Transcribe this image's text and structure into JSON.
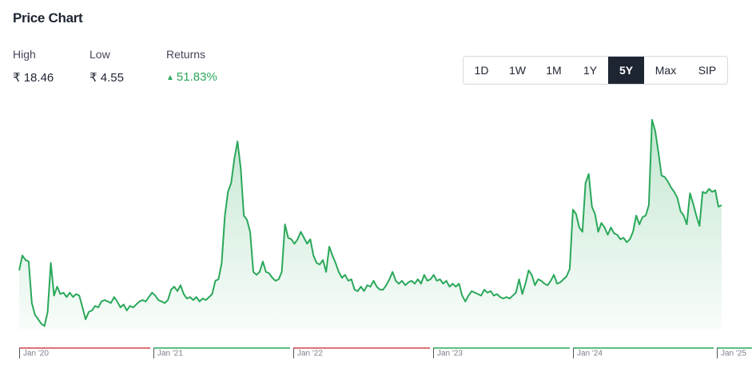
{
  "header": {
    "title": "Price Chart"
  },
  "stats": [
    {
      "label": "High",
      "value": "₹ 18.46"
    },
    {
      "label": "Low",
      "value": "₹ 4.55"
    },
    {
      "label": "Returns",
      "value": "51.83%"
    }
  ],
  "range_buttons": {
    "options": [
      "1D",
      "1W",
      "1M",
      "1Y",
      "5Y",
      "Max",
      "SIP"
    ],
    "selected": "5Y"
  },
  "chart_data": {
    "type": "line",
    "color": "#2aa85a",
    "ylim": [
      4.3,
      19.0
    ],
    "values": [
      8.3,
      9.3,
      9.0,
      8.9,
      6.1,
      5.3,
      5.0,
      4.7,
      4.55,
      5.5,
      8.8,
      6.6,
      7.2,
      6.7,
      6.8,
      6.5,
      6.8,
      6.5,
      6.7,
      6.6,
      5.8,
      5.0,
      5.5,
      5.6,
      5.9,
      5.8,
      6.2,
      6.3,
      6.2,
      6.1,
      6.5,
      6.2,
      5.8,
      6.0,
      5.6,
      5.9,
      5.8,
      6.0,
      6.2,
      6.3,
      6.2,
      6.5,
      6.8,
      6.6,
      6.3,
      6.2,
      6.1,
      6.3,
      7.0,
      7.2,
      6.9,
      7.3,
      6.7,
      6.4,
      6.5,
      6.3,
      6.5,
      6.2,
      6.4,
      6.3,
      6.5,
      6.7,
      7.6,
      7.7,
      8.8,
      12.0,
      13.6,
      14.2,
      15.8,
      17.0,
      15.2,
      12.0,
      11.7,
      10.9,
      8.2,
      8.0,
      8.2,
      8.9,
      8.2,
      8.1,
      7.8,
      7.6,
      7.7,
      8.2,
      11.4,
      10.5,
      10.4,
      10.1,
      10.4,
      10.9,
      10.5,
      10.1,
      10.4,
      9.3,
      8.8,
      8.7,
      9.0,
      8.2,
      9.9,
      9.3,
      8.8,
      8.2,
      7.8,
      8.0,
      7.6,
      7.7,
      7.0,
      6.9,
      7.2,
      6.9,
      7.3,
      7.2,
      7.6,
      7.2,
      7.0,
      7.0,
      7.3,
      7.7,
      8.2,
      7.6,
      7.4,
      7.6,
      7.3,
      7.5,
      7.6,
      7.4,
      7.7,
      7.4,
      8.0,
      7.6,
      7.7,
      8.0,
      7.6,
      7.7,
      7.4,
      7.6,
      7.2,
      7.4,
      7.2,
      7.4,
      6.6,
      6.2,
      6.6,
      6.9,
      6.8,
      6.7,
      6.6,
      7.0,
      6.8,
      6.9,
      6.6,
      6.7,
      6.5,
      6.4,
      6.5,
      6.4,
      6.6,
      6.8,
      7.7,
      6.7,
      7.4,
      8.3,
      8.0,
      7.3,
      7.7,
      7.6,
      7.4,
      7.3,
      7.6,
      8.0,
      7.4,
      7.5,
      7.7,
      7.9,
      8.4,
      12.4,
      12.1,
      11.2,
      10.9,
      14.2,
      14.8,
      12.6,
      12.1,
      10.9,
      11.5,
      11.2,
      10.7,
      11.2,
      10.8,
      10.7,
      10.4,
      10.5,
      10.2,
      10.4,
      10.9,
      12.0,
      11.4,
      11.9,
      12.0,
      12.7,
      18.46,
      17.7,
      16.3,
      14.7,
      14.6,
      14.3,
      13.9,
      13.6,
      13.2,
      12.3,
      12.0,
      11.4,
      13.5,
      12.8,
      12.0,
      11.3,
      13.6,
      13.5,
      13.8,
      13.6,
      13.7,
      12.6,
      12.7
    ],
    "x_labels": [
      "Jan '20",
      "Jan '21",
      "Jan '22",
      "Jan '23",
      "Jan '24",
      "Jan '25"
    ],
    "period_colors": [
      "#d0434b",
      "#2aa85a",
      "#d0434b",
      "#2aa85a",
      "#2aa85a",
      "#2aa85a"
    ]
  }
}
